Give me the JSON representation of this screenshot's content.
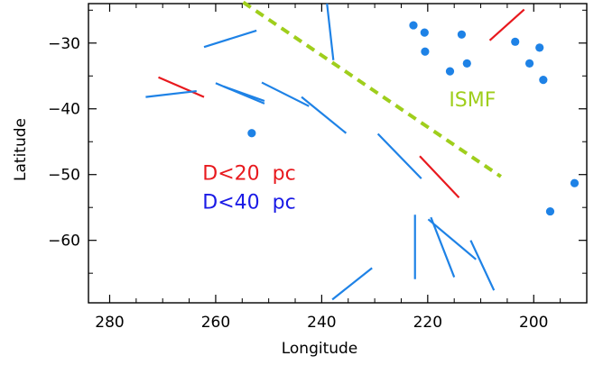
{
  "chart_data": {
    "type": "scatter",
    "xlabel": "Longitude",
    "ylabel": "Latitude",
    "xlim": [
      284,
      190
    ],
    "ylim": [
      -69.5,
      -24
    ],
    "x_ticks": [
      280,
      260,
      240,
      220,
      200
    ],
    "y_ticks": [
      -60,
      -50,
      -40,
      -30
    ],
    "colors": {
      "red": "#e8191e",
      "blue": "#1e82e6",
      "green": "#9fce1c",
      "legend_blue": "#1a1ae6"
    },
    "annotations": [
      {
        "text": "ISMF",
        "x": 216,
        "y": -39.6,
        "color": "green"
      },
      {
        "text": "D<20  pc",
        "x": 262.5,
        "y": -50.8,
        "color": "red"
      },
      {
        "text": "D<40  pc",
        "x": 262.5,
        "y": -55.2,
        "color": "legend_blue"
      }
    ],
    "series": [
      {
        "group": "D<20 pc",
        "color": "red",
        "segments": [
          [
            [
              270.8,
              -35.2
            ],
            [
              262.2,
              -38.2
            ]
          ],
          [
            [
              208.3,
              -29.6
            ],
            [
              201.8,
              -24.9
            ]
          ],
          [
            [
              221.5,
              -47.2
            ],
            [
              214.1,
              -53.5
            ]
          ]
        ]
      },
      {
        "group": "D<40 pc",
        "color": "blue",
        "segments": [
          [
            [
              273.2,
              -38.2
            ],
            [
              263.6,
              -37.3
            ]
          ],
          [
            [
              262.2,
              -30.6
            ],
            [
              252.3,
              -28.1
            ]
          ],
          [
            [
              260.0,
              -36.1
            ],
            [
              250.8,
              -39.2
            ]
          ],
          [
            [
              258.5,
              -36.6
            ],
            [
              250.8,
              -38.8
            ]
          ],
          [
            [
              251.3,
              -36.0
            ],
            [
              242.4,
              -39.6
            ]
          ],
          [
            [
              243.8,
              -38.2
            ],
            [
              235.4,
              -43.7
            ]
          ],
          [
            [
              239.0,
              -24.0
            ],
            [
              237.8,
              -32.6
            ]
          ],
          [
            [
              229.4,
              -43.8
            ],
            [
              221.2,
              -50.6
            ]
          ],
          [
            [
              219.9,
              -56.8
            ],
            [
              210.9,
              -62.9
            ]
          ],
          [
            [
              219.4,
              -56.5
            ],
            [
              215.0,
              -65.6
            ]
          ],
          [
            [
              222.4,
              -56.1
            ],
            [
              222.4,
              -65.9
            ]
          ],
          [
            [
              211.9,
              -60.0
            ],
            [
              207.5,
              -67.6
            ]
          ],
          [
            [
              238.0,
              -69.0
            ],
            [
              230.5,
              -64.2
            ]
          ]
        ]
      },
      {
        "group": "stars",
        "color": "blue",
        "points": [
          [
            253.2,
            -43.7
          ],
          [
            222.7,
            -27.3
          ],
          [
            220.6,
            -28.4
          ],
          [
            220.5,
            -31.3
          ],
          [
            213.6,
            -28.7
          ],
          [
            215.8,
            -34.3
          ],
          [
            212.6,
            -33.1
          ],
          [
            203.5,
            -29.8
          ],
          [
            200.8,
            -33.1
          ],
          [
            198.9,
            -30.7
          ],
          [
            198.2,
            -35.6
          ],
          [
            196.9,
            -55.6
          ],
          [
            192.3,
            -51.3
          ]
        ]
      },
      {
        "group": "ISMF",
        "color": "green",
        "style": "dashed",
        "segments": [
          [
            [
              254.8,
              -23.8
            ],
            [
              206.2,
              -50.3
            ]
          ]
        ]
      }
    ]
  }
}
